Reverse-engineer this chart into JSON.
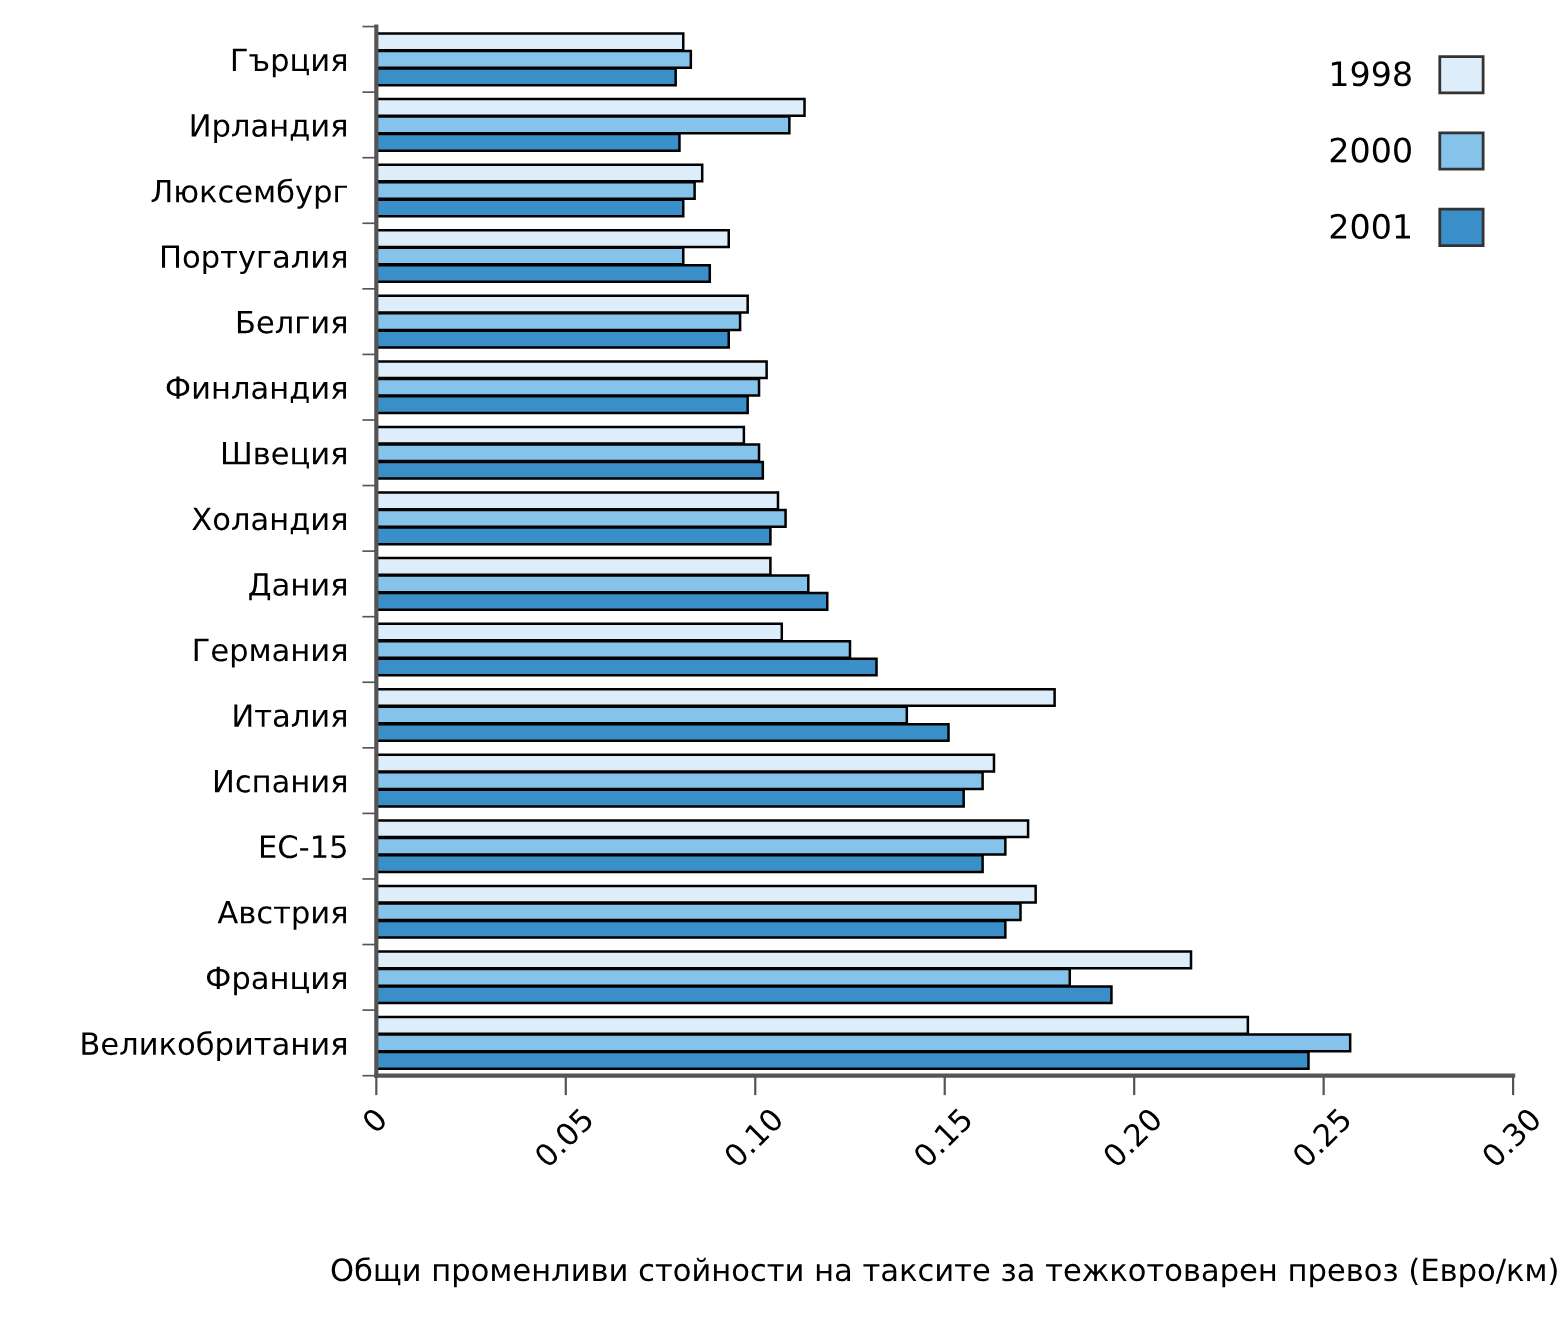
{
  "chart_data": {
    "type": "bar",
    "orientation": "horizontal",
    "categories": [
      "Гърция",
      "Ирландия",
      "Люксембург",
      "Португалия",
      "Белгия",
      "Финландия",
      "Швеция",
      "Холандия",
      "Дания",
      "Германия",
      "Италия",
      "Испания",
      "ЕС-15",
      "Австрия",
      "Франция",
      "Великобритания"
    ],
    "series": [
      {
        "name": "1998",
        "color": "#ddeefa",
        "values": [
          0.081,
          0.113,
          0.086,
          0.093,
          0.098,
          0.103,
          0.097,
          0.106,
          0.104,
          0.107,
          0.179,
          0.163,
          0.172,
          0.174,
          0.215,
          0.23
        ]
      },
      {
        "name": "2000",
        "color": "#85c3eb",
        "values": [
          0.083,
          0.109,
          0.084,
          0.081,
          0.096,
          0.101,
          0.101,
          0.108,
          0.114,
          0.125,
          0.14,
          0.16,
          0.166,
          0.17,
          0.183,
          0.257
        ]
      },
      {
        "name": "2001",
        "color": "#3a8fc8",
        "values": [
          0.079,
          0.08,
          0.081,
          0.088,
          0.093,
          0.098,
          0.102,
          0.104,
          0.119,
          0.132,
          0.151,
          0.155,
          0.16,
          0.166,
          0.194,
          0.246
        ]
      }
    ],
    "xlim": [
      0,
      0.3
    ],
    "xticks": [
      0,
      0.05,
      {
        "value": 0.1,
        "label": "0.10"
      },
      0.15,
      {
        "value": 0.2,
        "label": "0.20"
      },
      0.25,
      {
        "value": 0.3,
        "label": "0.30"
      }
    ],
    "xlabel": "Общи променливи стойности на таксите за тежкотоварен превоз (Евро/км)",
    "legend": "top right",
    "grid": false
  }
}
